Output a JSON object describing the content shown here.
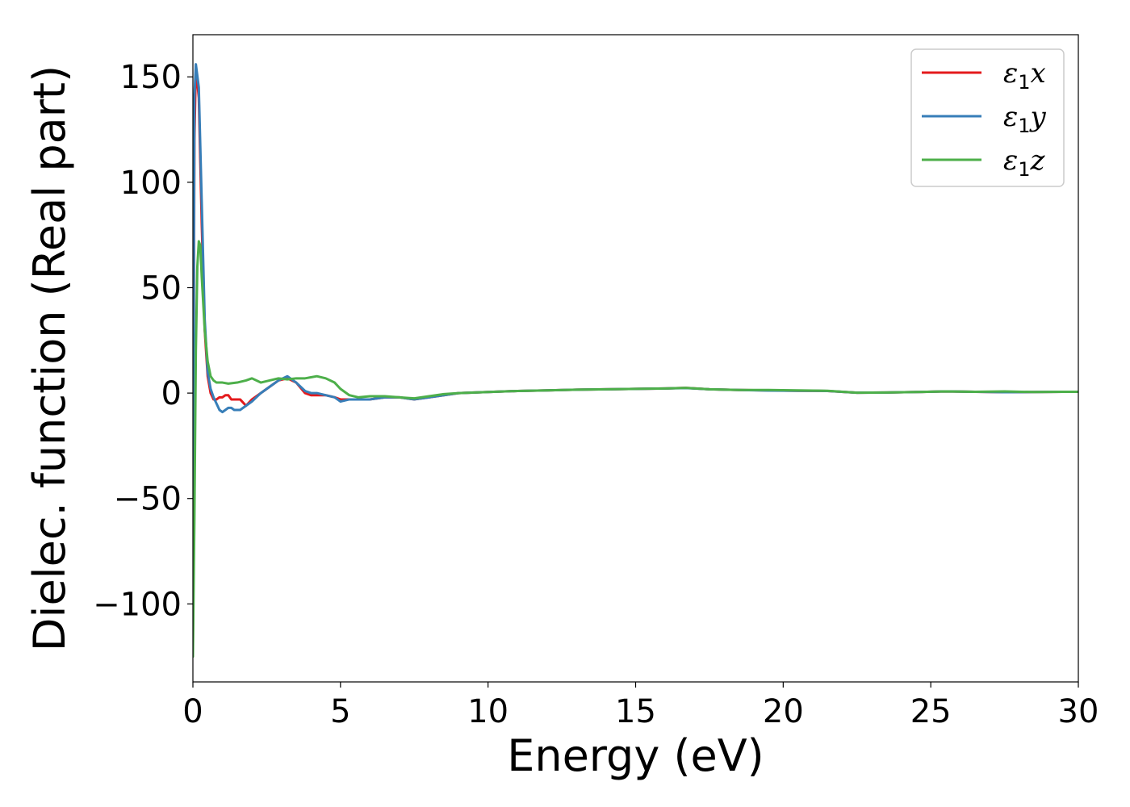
{
  "chart_data": {
    "type": "line",
    "xlabel": "Energy (eV)",
    "ylabel": "Dielec. function (Real part)",
    "xlim": [
      0,
      30
    ],
    "ylim": [
      -137,
      170
    ],
    "xticks": [
      0,
      5,
      10,
      15,
      20,
      25,
      30
    ],
    "yticks": [
      -100,
      -50,
      0,
      50,
      100,
      150
    ],
    "ytick_labels": [
      "−100",
      "−50",
      "0",
      "50",
      "100",
      "150"
    ],
    "grid": false,
    "legend_position": "top-right",
    "series": [
      {
        "name": "ε1x",
        "legend_main": "ε",
        "legend_sub": "1",
        "legend_var": "x",
        "color": "#e41a1c",
        "x": [
          0,
          0.05,
          0.1,
          0.2,
          0.3,
          0.4,
          0.5,
          0.6,
          0.7,
          0.8,
          0.9,
          1.0,
          1.1,
          1.2,
          1.3,
          1.4,
          1.6,
          1.8,
          2.0,
          2.3,
          2.6,
          2.9,
          3.2,
          3.5,
          3.8,
          4.0,
          4.2,
          4.5,
          4.8,
          5.0,
          5.3,
          5.6,
          6.0,
          6.5,
          7.0,
          7.5,
          8.0,
          8.5,
          9.0,
          10,
          11,
          12,
          13,
          14,
          15,
          16,
          16.7,
          17.5,
          18.5,
          19.5,
          20.5,
          21.5,
          22.5,
          23.5,
          24.5,
          25.5,
          26.5,
          27.5,
          28.5,
          29.5,
          30
        ],
        "y": [
          -120,
          120,
          155,
          140,
          80,
          30,
          8,
          0,
          -3,
          -3,
          -2,
          -2,
          -1,
          -1,
          -3,
          -3,
          -3,
          -6,
          -3,
          0,
          3,
          6,
          7,
          5,
          0,
          -1,
          -1,
          -1,
          -2,
          -3,
          -3,
          -3,
          -3,
          -2,
          -2,
          -3,
          -2,
          -1,
          0,
          0.5,
          1,
          1.3,
          1.6,
          1.8,
          2,
          2.2,
          2.5,
          1.8,
          1.5,
          1.3,
          1.1,
          1,
          0.2,
          0.3,
          0.5,
          0.8,
          0.6,
          0.4,
          0.5,
          0.6,
          0.6
        ]
      },
      {
        "name": "ε1y",
        "legend_main": "ε",
        "legend_sub": "1",
        "legend_var": "y",
        "color": "#377eb8",
        "x": [
          0,
          0.05,
          0.1,
          0.2,
          0.3,
          0.4,
          0.5,
          0.6,
          0.7,
          0.8,
          0.9,
          1.0,
          1.1,
          1.2,
          1.3,
          1.4,
          1.6,
          1.8,
          2.0,
          2.3,
          2.6,
          2.9,
          3.2,
          3.5,
          3.8,
          4.0,
          4.2,
          4.5,
          4.8,
          5.0,
          5.3,
          5.6,
          6.0,
          6.5,
          7.0,
          7.5,
          8.0,
          8.5,
          9.0,
          10,
          11,
          12,
          13,
          14,
          15,
          16,
          16.7,
          17.5,
          18.5,
          19.5,
          20.5,
          21.5,
          22.5,
          23.5,
          24.5,
          25.5,
          26.5,
          27.5,
          28.5,
          29.5,
          30
        ],
        "y": [
          -110,
          140,
          156,
          145,
          90,
          35,
          10,
          2,
          -2,
          -5,
          -8,
          -9,
          -8,
          -7,
          -7,
          -8,
          -8,
          -6,
          -4,
          0,
          3,
          6,
          8,
          5,
          1,
          0,
          0,
          -1,
          -2,
          -4,
          -3,
          -3,
          -3,
          -2,
          -2,
          -3,
          -2,
          -1,
          0,
          0.5,
          1,
          1.3,
          1.6,
          1.8,
          2,
          2.2,
          2.4,
          1.8,
          1.5,
          1.2,
          1.1,
          1,
          0.2,
          0.3,
          0.5,
          0.8,
          0.6,
          0.4,
          0.5,
          0.6,
          0.6
        ]
      },
      {
        "name": "ε1z",
        "legend_main": "ε",
        "legend_sub": "1",
        "legend_var": "z",
        "color": "#4daf4a",
        "x": [
          0,
          0.05,
          0.1,
          0.15,
          0.2,
          0.25,
          0.3,
          0.4,
          0.5,
          0.6,
          0.7,
          0.8,
          1.0,
          1.2,
          1.5,
          1.8,
          2.0,
          2.3,
          2.6,
          2.9,
          3.2,
          3.5,
          3.8,
          4.0,
          4.2,
          4.5,
          4.8,
          5.0,
          5.3,
          5.6,
          6.0,
          6.5,
          7.0,
          7.5,
          8.0,
          8.5,
          9.0,
          10,
          11,
          12,
          13,
          14,
          15,
          16,
          16.7,
          17.5,
          18.5,
          19.5,
          20.5,
          21.5,
          22.5,
          23.5,
          24.5,
          25.5,
          26.5,
          27.5,
          28.5,
          29.5,
          30
        ],
        "y": [
          -125,
          -60,
          20,
          60,
          72,
          70,
          55,
          30,
          15,
          8,
          6,
          5,
          5,
          4.5,
          5,
          6,
          7,
          5,
          6,
          7,
          6.5,
          7,
          7,
          7.5,
          8,
          7,
          5,
          2,
          -1,
          -2,
          -1.5,
          -1.5,
          -2,
          -2.5,
          -1.5,
          -0.5,
          0,
          0.5,
          1,
          1.3,
          1.6,
          1.8,
          2,
          2.2,
          2.5,
          1.8,
          1.5,
          1.5,
          1.3,
          1.1,
          0.2,
          0.3,
          0.5,
          0.8,
          0.6,
          0.8,
          0.5,
          0.6,
          0.6
        ]
      }
    ]
  }
}
